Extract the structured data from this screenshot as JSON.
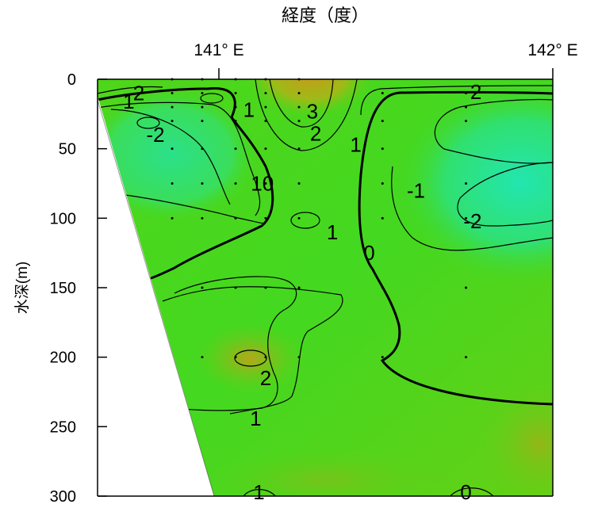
{
  "chart_data": {
    "type": "heatmap",
    "title": "経度（度）",
    "xlabel": "経度（度）",
    "ylabel": "水深(m)",
    "x_ticks": [
      "141° E",
      "142° E"
    ],
    "xlim": [
      140.7,
      142.0
    ],
    "ylim": [
      0,
      300
    ],
    "y_ticks": [
      0,
      50,
      100,
      150,
      200,
      250,
      300
    ],
    "y_tick_labels": [
      "0",
      "50",
      "100",
      "150",
      "200",
      "250",
      "300"
    ],
    "grid": false,
    "colorscale": [
      "#22e6a0",
      "#33dd55",
      "#66dd11",
      "#bbaa11"
    ],
    "contour_labels": [
      {
        "text": "1",
        "lon": 140.73,
        "depth": 16
      },
      {
        "text": "2",
        "lon": 140.76,
        "depth": 10
      },
      {
        "text": "1",
        "lon": 141.09,
        "depth": 22
      },
      {
        "text": "-2",
        "lon": 140.81,
        "depth": 40
      },
      {
        "text": "3",
        "lon": 141.28,
        "depth": 23
      },
      {
        "text": "2",
        "lon": 141.29,
        "depth": 39
      },
      {
        "text": "1",
        "lon": 141.41,
        "depth": 47
      },
      {
        "text": "10",
        "lon": 141.13,
        "depth": 75
      },
      {
        "text": "1",
        "lon": 141.34,
        "depth": 110
      },
      {
        "text": "0",
        "lon": 141.45,
        "depth": 125
      },
      {
        "text": "-1",
        "lon": 141.59,
        "depth": 80
      },
      {
        "text": "-2",
        "lon": 141.76,
        "depth": 102
      },
      {
        "text": "2",
        "lon": 141.77,
        "depth": 9
      },
      {
        "text": "2",
        "lon": 141.14,
        "depth": 215
      },
      {
        "text": "1",
        "lon": 141.11,
        "depth": 244
      },
      {
        "text": "1",
        "lon": 141.12,
        "depth": 300
      },
      {
        "text": "0",
        "lon": 141.74,
        "depth": 300
      }
    ],
    "stations": [
      {
        "lon": 140.86,
        "depths": [
          0,
          10,
          20,
          30,
          50,
          75,
          100
        ]
      },
      {
        "lon": 140.95,
        "depths": [
          0,
          10,
          20,
          30,
          50,
          75,
          100,
          150,
          200
        ]
      },
      {
        "lon": 141.05,
        "depths": [
          0,
          10,
          20,
          30,
          50,
          75,
          100,
          150,
          200
        ]
      },
      {
        "lon": 141.14,
        "depths": [
          0,
          10,
          20,
          30,
          50,
          75,
          100,
          150,
          200
        ]
      },
      {
        "lon": 141.24,
        "depths": [
          0,
          10,
          20,
          30,
          50,
          75,
          100,
          150,
          200
        ]
      },
      {
        "lon": 141.49,
        "depths": [
          10,
          30,
          50,
          75,
          100,
          150,
          200
        ]
      },
      {
        "lon": 141.74,
        "depths": [
          10,
          20,
          30,
          75,
          100,
          150,
          200
        ]
      }
    ]
  }
}
